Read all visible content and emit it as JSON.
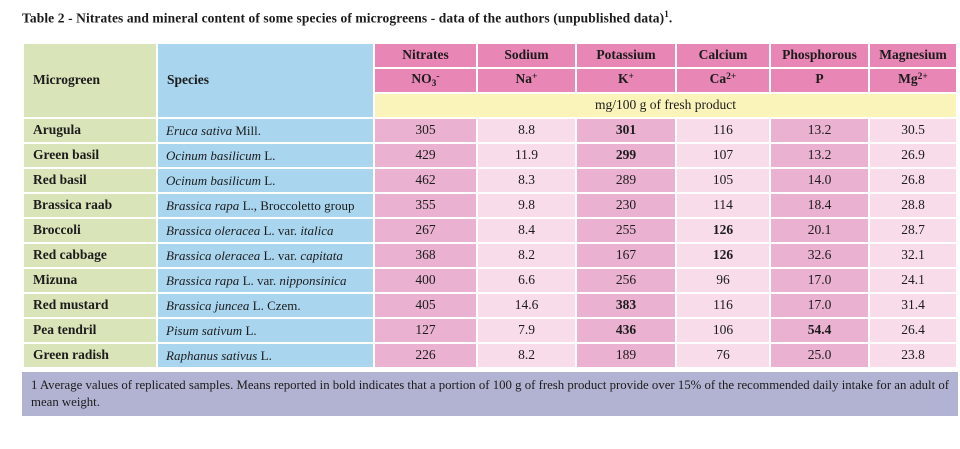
{
  "caption": {
    "text": "Table 2 - Nitrates and mineral content of some species of microgreens - data of the authors (unpublished data)",
    "sup": "1",
    "period": "."
  },
  "table": {
    "corner_headers": [
      "Microgreen",
      "Species"
    ],
    "columns": [
      "Nitrates",
      "Sodium",
      "Potassium",
      "Calcium",
      "Phosphorous",
      "Magnesium"
    ],
    "symbols": [
      {
        "base": "NO",
        "sub": "3",
        "sup": "-"
      },
      {
        "base": "Na",
        "sub": "",
        "sup": "+"
      },
      {
        "base": "K",
        "sub": "",
        "sup": "+"
      },
      {
        "base": "Ca",
        "sub": "",
        "sup": "2+"
      },
      {
        "base": "P",
        "sub": "",
        "sup": ""
      },
      {
        "base": "Mg",
        "sub": "",
        "sup": "2+"
      }
    ],
    "units": "mg/100 g of fresh product",
    "rows": [
      {
        "microgreen": "Arugula",
        "species": [
          {
            "t": "Eruca sativa",
            "i": true
          },
          {
            "t": " Mill.",
            "i": false
          }
        ],
        "values": [
          {
            "v": "305",
            "b": false
          },
          {
            "v": "8.8",
            "b": false
          },
          {
            "v": "301",
            "b": true
          },
          {
            "v": "116",
            "b": false
          },
          {
            "v": "13.2",
            "b": false
          },
          {
            "v": "30.5",
            "b": false
          }
        ]
      },
      {
        "microgreen": "Green basil",
        "species": [
          {
            "t": "Ocinum basilicum",
            "i": true
          },
          {
            "t": " L.",
            "i": false
          }
        ],
        "values": [
          {
            "v": "429",
            "b": false
          },
          {
            "v": "11.9",
            "b": false
          },
          {
            "v": "299",
            "b": true
          },
          {
            "v": "107",
            "b": false
          },
          {
            "v": "13.2",
            "b": false
          },
          {
            "v": "26.9",
            "b": false
          }
        ]
      },
      {
        "microgreen": "Red basil",
        "species": [
          {
            "t": "Ocinum basilicum",
            "i": true
          },
          {
            "t": " L.",
            "i": false
          }
        ],
        "values": [
          {
            "v": "462",
            "b": false
          },
          {
            "v": "8.3",
            "b": false
          },
          {
            "v": "289",
            "b": false
          },
          {
            "v": "105",
            "b": false
          },
          {
            "v": "14.0",
            "b": false
          },
          {
            "v": "26.8",
            "b": false
          }
        ]
      },
      {
        "microgreen": "Brassica raab",
        "species": [
          {
            "t": "Brassica rapa",
            "i": true
          },
          {
            "t": " L., Broccoletto group",
            "i": false
          }
        ],
        "values": [
          {
            "v": "355",
            "b": false
          },
          {
            "v": "9.8",
            "b": false
          },
          {
            "v": "230",
            "b": false
          },
          {
            "v": "114",
            "b": false
          },
          {
            "v": "18.4",
            "b": false
          },
          {
            "v": "28.8",
            "b": false
          }
        ]
      },
      {
        "microgreen": "Broccoli",
        "species": [
          {
            "t": "Brassica oleracea",
            "i": true
          },
          {
            "t": " L. var. ",
            "i": false
          },
          {
            "t": "italica",
            "i": true
          }
        ],
        "values": [
          {
            "v": "267",
            "b": false
          },
          {
            "v": "8.4",
            "b": false
          },
          {
            "v": "255",
            "b": false
          },
          {
            "v": "126",
            "b": true
          },
          {
            "v": "20.1",
            "b": false
          },
          {
            "v": "28.7",
            "b": false
          }
        ]
      },
      {
        "microgreen": "Red cabbage",
        "species": [
          {
            "t": "Brassica oleracea",
            "i": true
          },
          {
            "t": " L. var. ",
            "i": false
          },
          {
            "t": "capitata",
            "i": true
          }
        ],
        "values": [
          {
            "v": "368",
            "b": false
          },
          {
            "v": "8.2",
            "b": false
          },
          {
            "v": "167",
            "b": false
          },
          {
            "v": "126",
            "b": true
          },
          {
            "v": "32.6",
            "b": false
          },
          {
            "v": "32.1",
            "b": false
          }
        ]
      },
      {
        "microgreen": "Mizuna",
        "species": [
          {
            "t": "Brassica rapa",
            "i": true
          },
          {
            "t": " L. var. ",
            "i": false
          },
          {
            "t": "nipponsinica",
            "i": true
          }
        ],
        "values": [
          {
            "v": "400",
            "b": false
          },
          {
            "v": "6.6",
            "b": false
          },
          {
            "v": "256",
            "b": false
          },
          {
            "v": "96",
            "b": false
          },
          {
            "v": "17.0",
            "b": false
          },
          {
            "v": "24.1",
            "b": false
          }
        ]
      },
      {
        "microgreen": "Red mustard",
        "species": [
          {
            "t": "Brassica juncea",
            "i": true
          },
          {
            "t": " L. Czem.",
            "i": false
          }
        ],
        "values": [
          {
            "v": "405",
            "b": false
          },
          {
            "v": "14.6",
            "b": false
          },
          {
            "v": "383",
            "b": true
          },
          {
            "v": "116",
            "b": false
          },
          {
            "v": "17.0",
            "b": false
          },
          {
            "v": "31.4",
            "b": false
          }
        ]
      },
      {
        "microgreen": "Pea tendril",
        "species": [
          {
            "t": "Pisum sativum",
            "i": true
          },
          {
            "t": " L.",
            "i": false
          }
        ],
        "values": [
          {
            "v": "127",
            "b": false
          },
          {
            "v": "7.9",
            "b": false
          },
          {
            "v": "436",
            "b": true
          },
          {
            "v": "106",
            "b": false
          },
          {
            "v": "54.4",
            "b": true
          },
          {
            "v": "26.4",
            "b": false
          }
        ]
      },
      {
        "microgreen": "Green radish",
        "species": [
          {
            "t": "Raphanus sativus",
            "i": true
          },
          {
            "t": " L.",
            "i": false
          }
        ],
        "values": [
          {
            "v": "226",
            "b": false
          },
          {
            "v": "8.2",
            "b": false
          },
          {
            "v": "189",
            "b": false
          },
          {
            "v": "76",
            "b": false
          },
          {
            "v": "25.0",
            "b": false
          },
          {
            "v": "23.8",
            "b": false
          }
        ]
      }
    ]
  },
  "footnote": "1 Average values of replicated samples. Means reported in bold indicates that a portion of 100 g of fresh product provide over 15% of the recommended daily intake for an adult of mean weight.",
  "colors": {
    "green": "#d9e5b9",
    "blue": "#a9d5ef",
    "header-pink": "#e886b5",
    "mid-pink": "#eab1d1",
    "light-pink": "#f8dcea",
    "yellow": "#fbf4ba",
    "lavender": "#b2b3d2",
    "ink": "#1c1c1c"
  }
}
